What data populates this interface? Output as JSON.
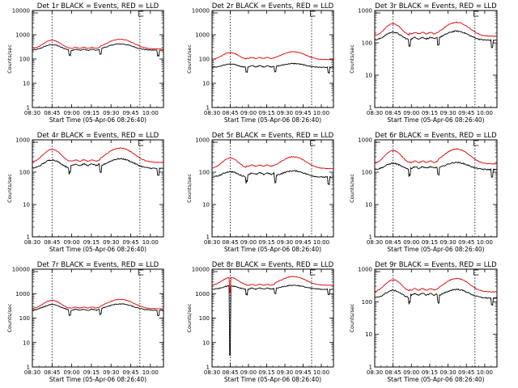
{
  "title_prefix": "Det",
  "title_suffix": "BLACK = Events, RED = LLD",
  "ylabel": "Counts/sec",
  "xlabel": "Start Time (05-Apr-06 08:26:40)",
  "colors": {
    "events": "#000000",
    "lld": "#e00000",
    "axes": "#000000"
  },
  "chart_data": [
    {
      "type": "line",
      "title": "Det 1r BLACK = Events, RED = LLD",
      "tick_labels": [
        "08:30",
        "08:45",
        "09:00",
        "09:15",
        "09:30",
        "09:45",
        "10:00"
      ],
      "y_tick_labels": [
        "1",
        "10",
        "100",
        "1000",
        "10000"
      ],
      "ylim": [
        1,
        10000
      ],
      "y_scale": "log",
      "x_minutes_after_0830": [
        0,
        100
      ],
      "events": {
        "low": 230,
        "peak": 420,
        "mid": 240
      },
      "lld": {
        "low": 260,
        "peak": 650,
        "mid": 290
      }
    },
    {
      "type": "line",
      "title": "Det 2r BLACK = Events, RED = LLD",
      "tick_labels": [
        "08:30",
        "08:45",
        "09:00",
        "09:15",
        "09:30",
        "09:45",
        "10:00"
      ],
      "y_tick_labels": [
        "1",
        "10",
        "100",
        "1000",
        "10000"
      ],
      "ylim": [
        1,
        10000
      ],
      "y_scale": "log",
      "x_minutes_after_0830": [
        0,
        100
      ],
      "events": {
        "low": 45,
        "peak": 65,
        "mid": 50
      },
      "lld": {
        "low": 95,
        "peak": 200,
        "mid": 110
      }
    },
    {
      "type": "line",
      "title": "Det 3r BLACK = Events, RED = LLD",
      "tick_labels": [
        "08:30",
        "08:45",
        "09:00",
        "09:15",
        "09:30",
        "09:45",
        "10:00"
      ],
      "y_tick_labels": [
        "1",
        "10",
        "100",
        "1000"
      ],
      "ylim": [
        1,
        1000
      ],
      "y_scale": "log",
      "x_minutes_after_0830": [
        0,
        100
      ],
      "events": {
        "low": 120,
        "peak": 230,
        "mid": 140
      },
      "lld": {
        "low": 160,
        "peak": 430,
        "mid": 200
      }
    },
    {
      "type": "line",
      "title": "Det 4r BLACK = Events, RED = LLD",
      "tick_labels": [
        "08:30",
        "08:45",
        "09:00",
        "09:15",
        "09:30",
        "09:45",
        "10:00"
      ],
      "y_tick_labels": [
        "1",
        "10",
        "100",
        "1000"
      ],
      "ylim": [
        1,
        1000
      ],
      "y_scale": "log",
      "x_minutes_after_0830": [
        0,
        100
      ],
      "events": {
        "low": 130,
        "peak": 260,
        "mid": 170
      },
      "lld": {
        "low": 200,
        "peak": 560,
        "mid": 230
      }
    },
    {
      "type": "line",
      "title": "Det 5r BLACK = Events, RED = LLD",
      "tick_labels": [
        "08:30",
        "08:45",
        "09:00",
        "09:15",
        "09:30",
        "09:45",
        "10:00"
      ],
      "y_tick_labels": [
        "1",
        "10",
        "100",
        "1000"
      ],
      "ylim": [
        1,
        1000
      ],
      "y_scale": "log",
      "x_minutes_after_0830": [
        0,
        100
      ],
      "events": {
        "low": 70,
        "peak": 110,
        "mid": 90
      },
      "lld": {
        "low": 130,
        "peak": 300,
        "mid": 160
      }
    },
    {
      "type": "line",
      "title": "Det 6r BLACK = Events, RED = LLD",
      "tick_labels": [
        "08:30",
        "08:45",
        "09:00",
        "09:15",
        "09:30",
        "09:45",
        "10:00"
      ],
      "y_tick_labels": [
        "1",
        "10",
        "100",
        "1000"
      ],
      "ylim": [
        1,
        1000
      ],
      "y_scale": "log",
      "x_minutes_after_0830": [
        0,
        100
      ],
      "events": {
        "low": 120,
        "peak": 200,
        "mid": 140
      },
      "lld": {
        "low": 180,
        "peak": 520,
        "mid": 210
      }
    },
    {
      "type": "line",
      "title": "Det 7r BLACK = Events, RED = LLD",
      "tick_labels": [
        "08:30",
        "08:45",
        "09:00",
        "09:15",
        "09:30",
        "09:45",
        "10:00"
      ],
      "y_tick_labels": [
        "1",
        "10",
        "100",
        "1000",
        "10000"
      ],
      "ylim": [
        1,
        10000
      ],
      "y_scale": "log",
      "x_minutes_after_0830": [
        0,
        100
      ],
      "events": {
        "low": 210,
        "peak": 380,
        "mid": 220
      },
      "lld": {
        "low": 240,
        "peak": 580,
        "mid": 270
      }
    },
    {
      "type": "line",
      "title": "Det 8r BLACK = Events, RED = LLD",
      "tick_labels": [
        "08:30",
        "08:45",
        "09:00",
        "09:15",
        "09:30",
        "09:45",
        "10:00"
      ],
      "y_tick_labels": [
        "1",
        "10",
        "100",
        "1000",
        "10000"
      ],
      "ylim": [
        1,
        10000
      ],
      "y_scale": "log",
      "x_minutes_after_0830": [
        0,
        100
      ],
      "events": {
        "low": 1500,
        "peak": 2200,
        "mid": 1600
      },
      "lld": {
        "low": 2200,
        "peak": 5000,
        "mid": 2300
      },
      "dip": {
        "time": "08:45",
        "events_min": 3
      }
    },
    {
      "type": "line",
      "title": "Det 9r BLACK = Events, RED = LLD",
      "tick_labels": [
        "08:30",
        "08:45",
        "09:00",
        "09:15",
        "09:30",
        "09:45",
        "10:00"
      ],
      "y_tick_labels": [
        "1",
        "10",
        "100",
        "1000"
      ],
      "ylim": [
        1,
        1000
      ],
      "y_scale": "log",
      "x_minutes_after_0830": [
        0,
        100
      ],
      "events": {
        "low": 130,
        "peak": 240,
        "mid": 170
      },
      "lld": {
        "low": 200,
        "peak": 520,
        "mid": 240
      }
    }
  ]
}
